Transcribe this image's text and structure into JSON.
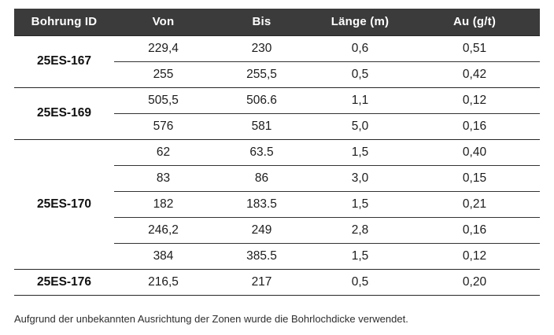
{
  "table": {
    "columns": [
      "Bohrung ID",
      "Von",
      "Bis",
      "Länge (m)",
      "Au (g/t)"
    ],
    "groups": [
      {
        "id": "25ES-167",
        "rows": [
          [
            "229,4",
            "230",
            "0,6",
            "0,51"
          ],
          [
            "255",
            "255,5",
            "0,5",
            "0,42"
          ]
        ]
      },
      {
        "id": "25ES-169",
        "rows": [
          [
            "505,5",
            "506.6",
            "1,1",
            "0,12"
          ],
          [
            "576",
            "581",
            "5,0",
            "0,16"
          ]
        ]
      },
      {
        "id": "25ES-170",
        "rows": [
          [
            "62",
            "63.5",
            "1,5",
            "0,40"
          ],
          [
            "83",
            "86",
            "3,0",
            "0,15"
          ],
          [
            "182",
            "183.5",
            "1,5",
            "0,21"
          ],
          [
            "246,2",
            "249",
            "2,8",
            "0,16"
          ],
          [
            "384",
            "385.5",
            "1,5",
            "0,12"
          ]
        ]
      },
      {
        "id": "25ES-176",
        "rows": [
          [
            "216,5",
            "217",
            "0,5",
            "0,20"
          ]
        ]
      }
    ]
  },
  "footnote": "Aufgrund der unbekannten Ausrichtung der Zonen wurde die Bohrlochdicke verwendet.",
  "colors": {
    "header_bg": "#3b3b3b",
    "header_text": "#ffffff",
    "body_text": "#1c1c1c",
    "rule": "#262626"
  }
}
